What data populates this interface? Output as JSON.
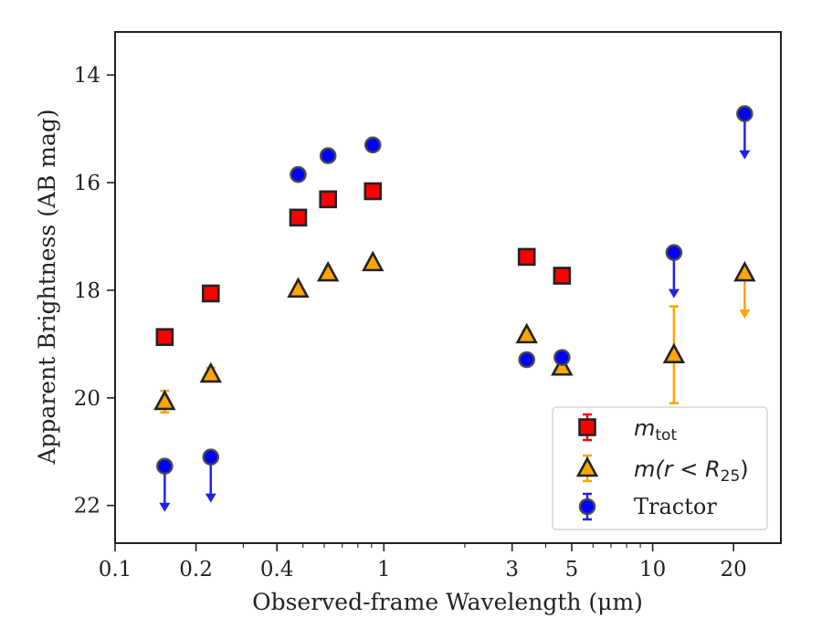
{
  "chart_data": {
    "type": "scatter",
    "title": "",
    "xlabel": "Observed-frame Wavelength (μm)",
    "ylabel": "Apparent Brightness (AB mag)",
    "xscale": "log",
    "xlim": [
      0.1,
      30
    ],
    "ylim": [
      22.7,
      13.2
    ],
    "y_inverted": true,
    "x_ticks": [
      0.1,
      0.2,
      0.4,
      1,
      3,
      5,
      10,
      20
    ],
    "x_tick_labels": [
      "0.1",
      "0.2",
      "0.4",
      "1",
      "3",
      "5",
      "10",
      "20"
    ],
    "y_ticks": [
      14,
      16,
      18,
      20,
      22
    ],
    "y_tick_labels": [
      "14",
      "16",
      "18",
      "20",
      "22"
    ],
    "legend_placement": "lower-right",
    "series": [
      {
        "name": "m_tot",
        "legend_main": "m",
        "legend_sub": "tot",
        "marker": "square",
        "color": "#ff0000",
        "errcolor": "#ff0000",
        "points": [
          {
            "x": 0.153,
            "y": 18.87,
            "err": 0.1
          },
          {
            "x": 0.227,
            "y": 18.06,
            "err": 0.08
          },
          {
            "x": 0.48,
            "y": 16.65,
            "err": 0.05
          },
          {
            "x": 0.62,
            "y": 16.31,
            "err": 0.05
          },
          {
            "x": 0.91,
            "y": 16.16,
            "err": 0.05
          },
          {
            "x": 3.4,
            "y": 17.38,
            "err": 0.05
          },
          {
            "x": 4.6,
            "y": 17.73,
            "err": 0.05
          }
        ]
      },
      {
        "name": "m(r < R25)",
        "legend_main": "m(r < R",
        "legend_sub": "25",
        "legend_after": ")",
        "marker": "triangle",
        "color": "#ffa500",
        "errcolor": "#ffa500",
        "points": [
          {
            "x": 0.153,
            "y": 20.07,
            "err": 0.2
          },
          {
            "x": 0.227,
            "y": 19.56,
            "err": 0.12
          },
          {
            "x": 0.48,
            "y": 17.98,
            "err": 0.06
          },
          {
            "x": 0.62,
            "y": 17.68,
            "err": 0.06
          },
          {
            "x": 0.91,
            "y": 17.49,
            "err": 0.05
          },
          {
            "x": 3.4,
            "y": 18.83,
            "err": 0.08
          },
          {
            "x": 4.6,
            "y": 19.43,
            "err": 0.1
          },
          {
            "x": 12.0,
            "y": 19.2,
            "err": 0.9
          },
          {
            "x": 22.0,
            "y": 17.68,
            "upper_limit": true
          }
        ]
      },
      {
        "name": "Tractor",
        "marker": "circle",
        "color": "#0000ff",
        "errcolor": "#2222ee",
        "points": [
          {
            "x": 0.153,
            "y": 21.27,
            "upper_limit": true
          },
          {
            "x": 0.227,
            "y": 21.1,
            "upper_limit": true
          },
          {
            "x": 0.48,
            "y": 15.85,
            "err": 0.05
          },
          {
            "x": 0.62,
            "y": 15.5,
            "err": 0.05
          },
          {
            "x": 0.91,
            "y": 15.3,
            "err": 0.05
          },
          {
            "x": 3.4,
            "y": 19.29,
            "err": 0.05
          },
          {
            "x": 4.6,
            "y": 19.25,
            "err": 0.05
          },
          {
            "x": 12.0,
            "y": 17.3,
            "upper_limit": true
          },
          {
            "x": 22.0,
            "y": 14.72,
            "upper_limit": true
          }
        ]
      }
    ]
  }
}
